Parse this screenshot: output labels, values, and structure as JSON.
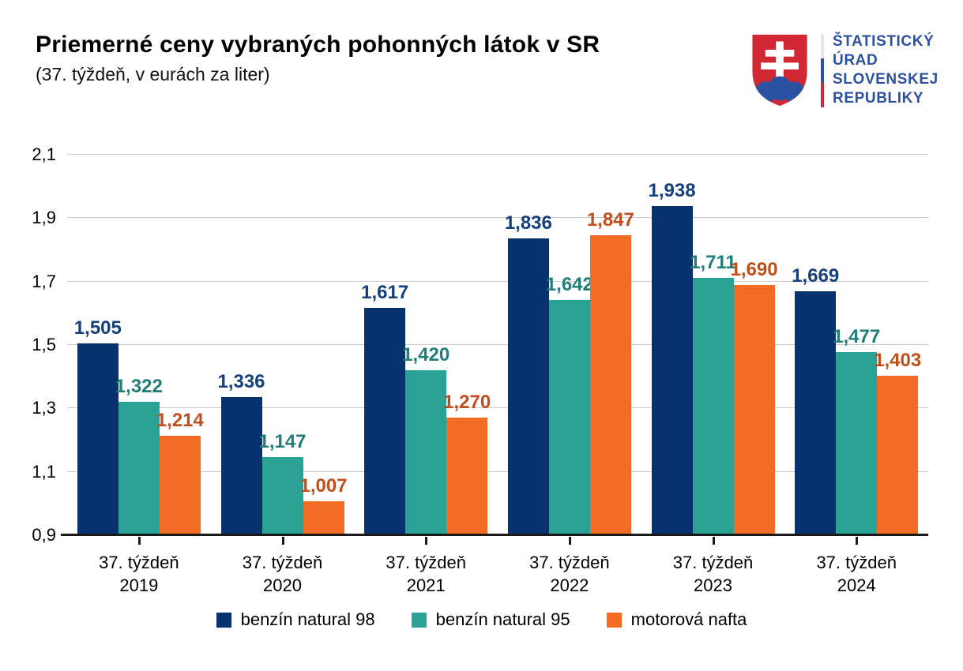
{
  "header": {
    "title": "Priemerné ceny vybraných pohonných látok v SR",
    "subtitle": "(37. týždeň, v eurách za liter)"
  },
  "logo": {
    "org_lines": [
      "ŠTATISTICKÝ",
      "ÚRAD",
      "SLOVENSKEJ",
      "REPUBLIKY"
    ],
    "text_color": "#2d509f",
    "shield_red": "#d22834",
    "shield_blue": "#2a52a0",
    "flag_colors": [
      "#e3e3e3",
      "#2a52a0",
      "#d22834"
    ]
  },
  "chart_data": {
    "type": "bar",
    "title": "Priemerné ceny vybraných pohonných látok v SR",
    "subtitle": "(37. týždeň, v eurách za liter)",
    "categories": [
      [
        "37. týždeň",
        "2019"
      ],
      [
        "37. týždeň",
        "2020"
      ],
      [
        "37. týždeň",
        "2021"
      ],
      [
        "37. týždeň",
        "2022"
      ],
      [
        "37. týždeň",
        "2023"
      ],
      [
        "37. týždeň",
        "2024"
      ]
    ],
    "series": [
      {
        "name": "benzín natural 98",
        "color": "#08326e",
        "label_color": "#15407c",
        "values": [
          1.505,
          1.336,
          1.617,
          1.836,
          1.938,
          1.669
        ]
      },
      {
        "name": "benzín natural 95",
        "color": "#2aa396",
        "label_color": "#1f7e77",
        "values": [
          1.322,
          1.147,
          1.42,
          1.642,
          1.711,
          1.477
        ]
      },
      {
        "name": "motorová nafta",
        "color": "#f36c26",
        "label_color": "#c04f1c",
        "values": [
          1.214,
          1.007,
          1.27,
          1.847,
          1.69,
          1.403
        ]
      }
    ],
    "ylim": [
      0.9,
      2.1
    ],
    "yticks": [
      0.9,
      1.1,
      1.3,
      1.5,
      1.7,
      1.9,
      2.1
    ],
    "grid": true,
    "legend_position": "bottom",
    "decimal_separator": ",",
    "gridline_color": "#c9c9c9",
    "axis_color": "#1a1a1a"
  }
}
